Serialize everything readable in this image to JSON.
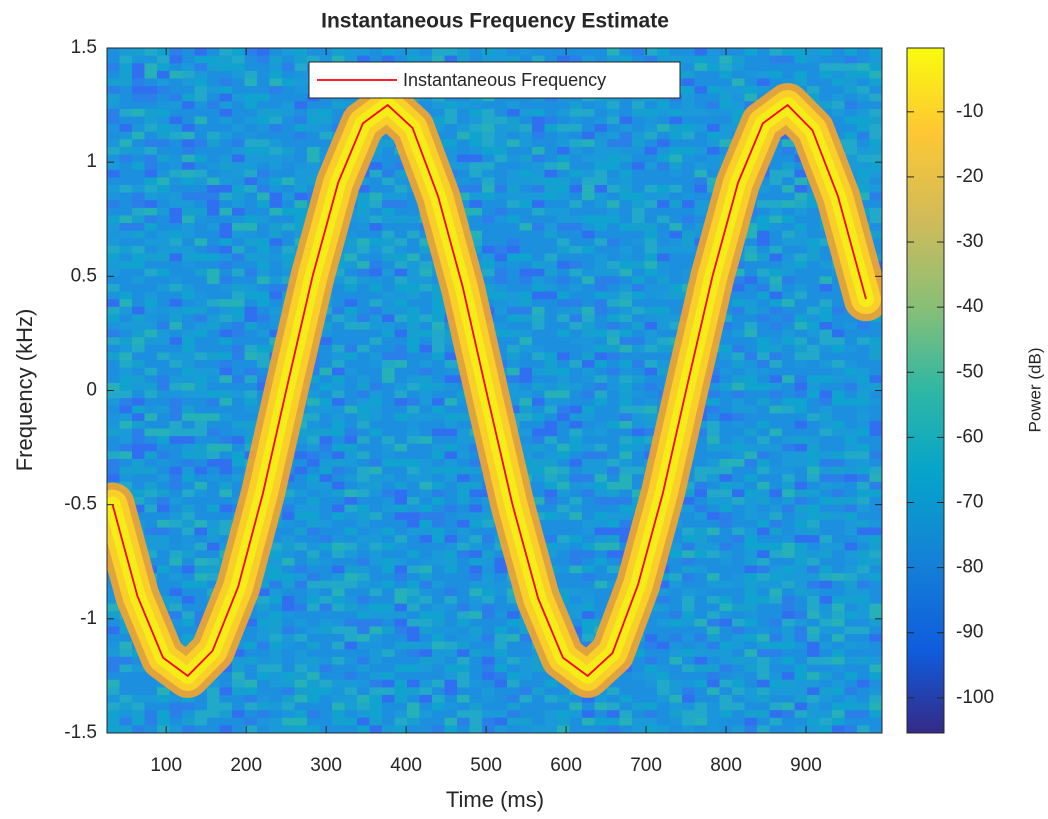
{
  "chart_data": {
    "type": "line",
    "title": "Instantaneous Frequency Estimate",
    "xlabel": "Time (ms)",
    "ylabel": "Frequency (kHz)",
    "x": [
      33,
      64,
      96,
      127,
      158,
      190,
      221,
      252,
      283,
      315,
      346,
      377,
      408,
      440,
      471,
      502,
      533,
      565,
      596,
      627,
      658,
      690,
      721,
      752,
      783,
      815,
      846,
      877,
      908,
      940,
      975
    ],
    "series": [
      {
        "name": "Instantaneous Frequency",
        "color": "#ff0000",
        "values": [
          -0.5,
          -0.9,
          -1.17,
          -1.25,
          -1.14,
          -0.86,
          -0.45,
          0.03,
          0.5,
          0.91,
          1.17,
          1.25,
          1.15,
          0.85,
          0.45,
          -0.03,
          -0.5,
          -0.91,
          -1.17,
          -1.25,
          -1.15,
          -0.85,
          -0.45,
          0.03,
          0.5,
          0.91,
          1.17,
          1.25,
          1.14,
          0.85,
          0.4
        ]
      }
    ],
    "xlim": [
      26,
      995
    ],
    "ylim": [
      -1.5,
      1.5
    ],
    "xticks": [
      100,
      200,
      300,
      400,
      500,
      600,
      700,
      800,
      900
    ],
    "yticks": [
      1.5,
      1,
      0.5,
      0,
      -0.5,
      -1,
      -1.5
    ],
    "legend": "top",
    "colorbar": {
      "label": "Power (dB)",
      "clim": [
        -105.4,
        -0.2
      ],
      "ticks": [
        -10,
        -20,
        -30,
        -40,
        -50,
        -60,
        -70,
        -80,
        -90,
        -100
      ]
    }
  }
}
